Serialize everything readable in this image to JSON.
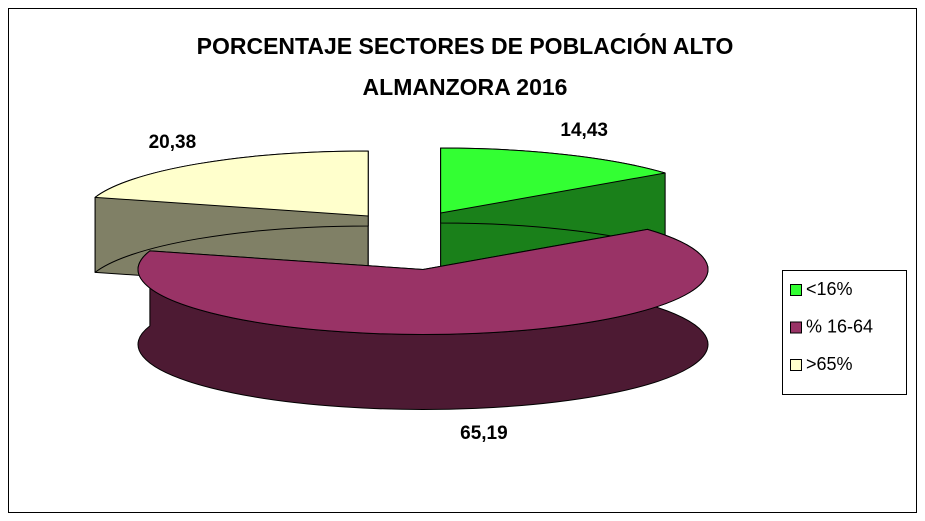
{
  "chart_data": {
    "type": "pie3d",
    "title": "PORCENTAJE SECTORES DE POBLACIÓN ALTO ALMANZORA 2016",
    "categories": [
      "<16%",
      "% 16-64",
      ">65%"
    ],
    "values": [
      14.43,
      65.19,
      20.38
    ],
    "value_labels": [
      "14,43",
      "65,19",
      "20,38"
    ],
    "colors": [
      "#33ff33",
      "#993366",
      "#ffffcc"
    ],
    "legend": "right"
  }
}
